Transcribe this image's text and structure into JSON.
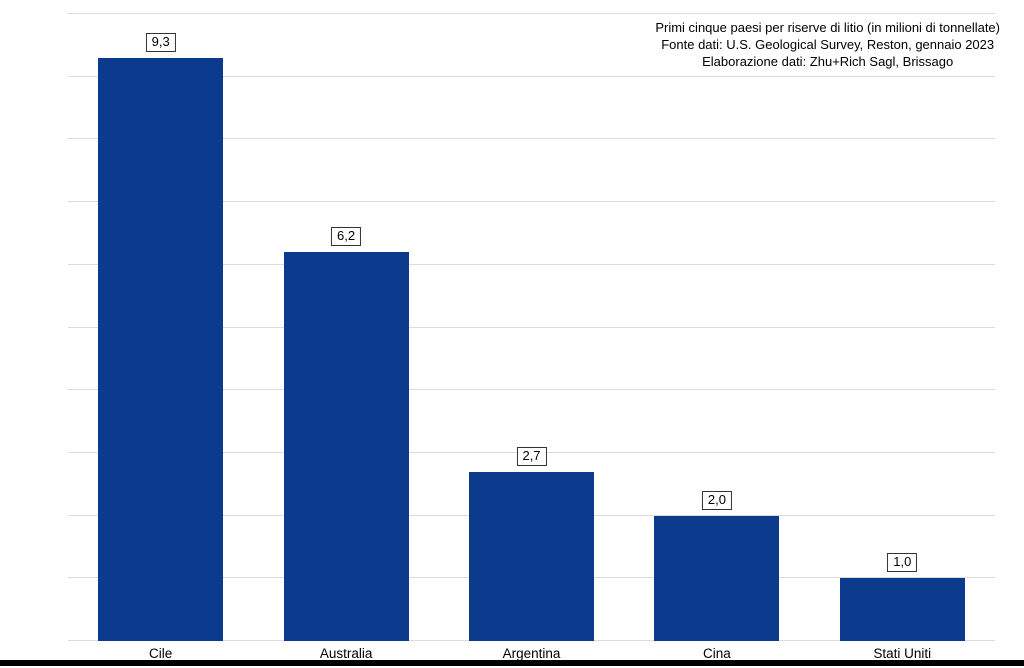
{
  "chart_data": {
    "type": "bar",
    "title": "Primi cinque paesi per riserve di litio (in milioni di tonnellate)",
    "source_line": "Fonte dati: U.S. Geological Survey, Reston, gennaio 2023",
    "elaboration_line": "Elaborazione dati: Zhu+Rich Sagl, Brissago",
    "categories": [
      "Cile",
      "Australia",
      "Argentina",
      "Cina",
      "Stati Uniti"
    ],
    "values": [
      9.3,
      6.2,
      2.7,
      2.0,
      1.0
    ],
    "value_labels": [
      "9,3",
      "6,2",
      "2,7",
      "2,0",
      "1,0"
    ],
    "xlabel": "",
    "ylabel": "",
    "ylim": [
      0,
      10
    ],
    "grid_step": 1,
    "grid": true,
    "legend": false,
    "y_tick_labels_visible": false,
    "bar_color": "#0c3a8d",
    "grid_color": "#dcdcdc",
    "label_box_border_color": "#333333",
    "text_color": "#000000",
    "background_color": "#ffffff",
    "bottom_strip_color": "#000000"
  }
}
